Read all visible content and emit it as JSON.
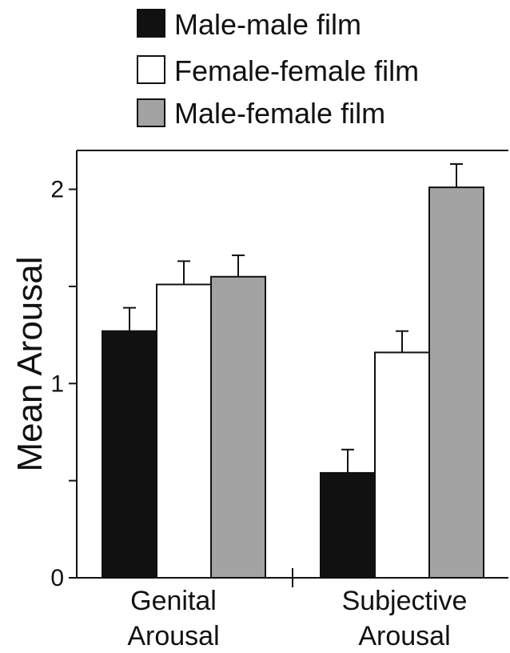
{
  "chart_data": {
    "type": "bar",
    "title": "",
    "xlabel": "",
    "ylabel": "Mean Arousal",
    "ylim": [
      0,
      2.2
    ],
    "yticks": [
      {
        "value": 0,
        "label": "0"
      },
      {
        "value": 0.5,
        "label": ""
      },
      {
        "value": 1,
        "label": "1"
      },
      {
        "value": 1.5,
        "label": ""
      },
      {
        "value": 2,
        "label": "2"
      }
    ],
    "categories": [
      {
        "line1": "Genital",
        "line2": "Arousal"
      },
      {
        "line1": "Subjective",
        "line2": "Arousal"
      }
    ],
    "series": [
      {
        "name": "Male-male film",
        "color": "#111111",
        "values": [
          1.27,
          0.54
        ],
        "errors": [
          0.12,
          0.12
        ]
      },
      {
        "name": "Female-female film",
        "color": "#ffffff",
        "values": [
          1.51,
          1.16
        ],
        "errors": [
          0.12,
          0.11
        ]
      },
      {
        "name": "Male-female film",
        "color": "#a3a3a3",
        "values": [
          1.55,
          2.01
        ],
        "errors": [
          0.11,
          0.12
        ]
      }
    ],
    "legend_position": "top",
    "grid": false
  }
}
